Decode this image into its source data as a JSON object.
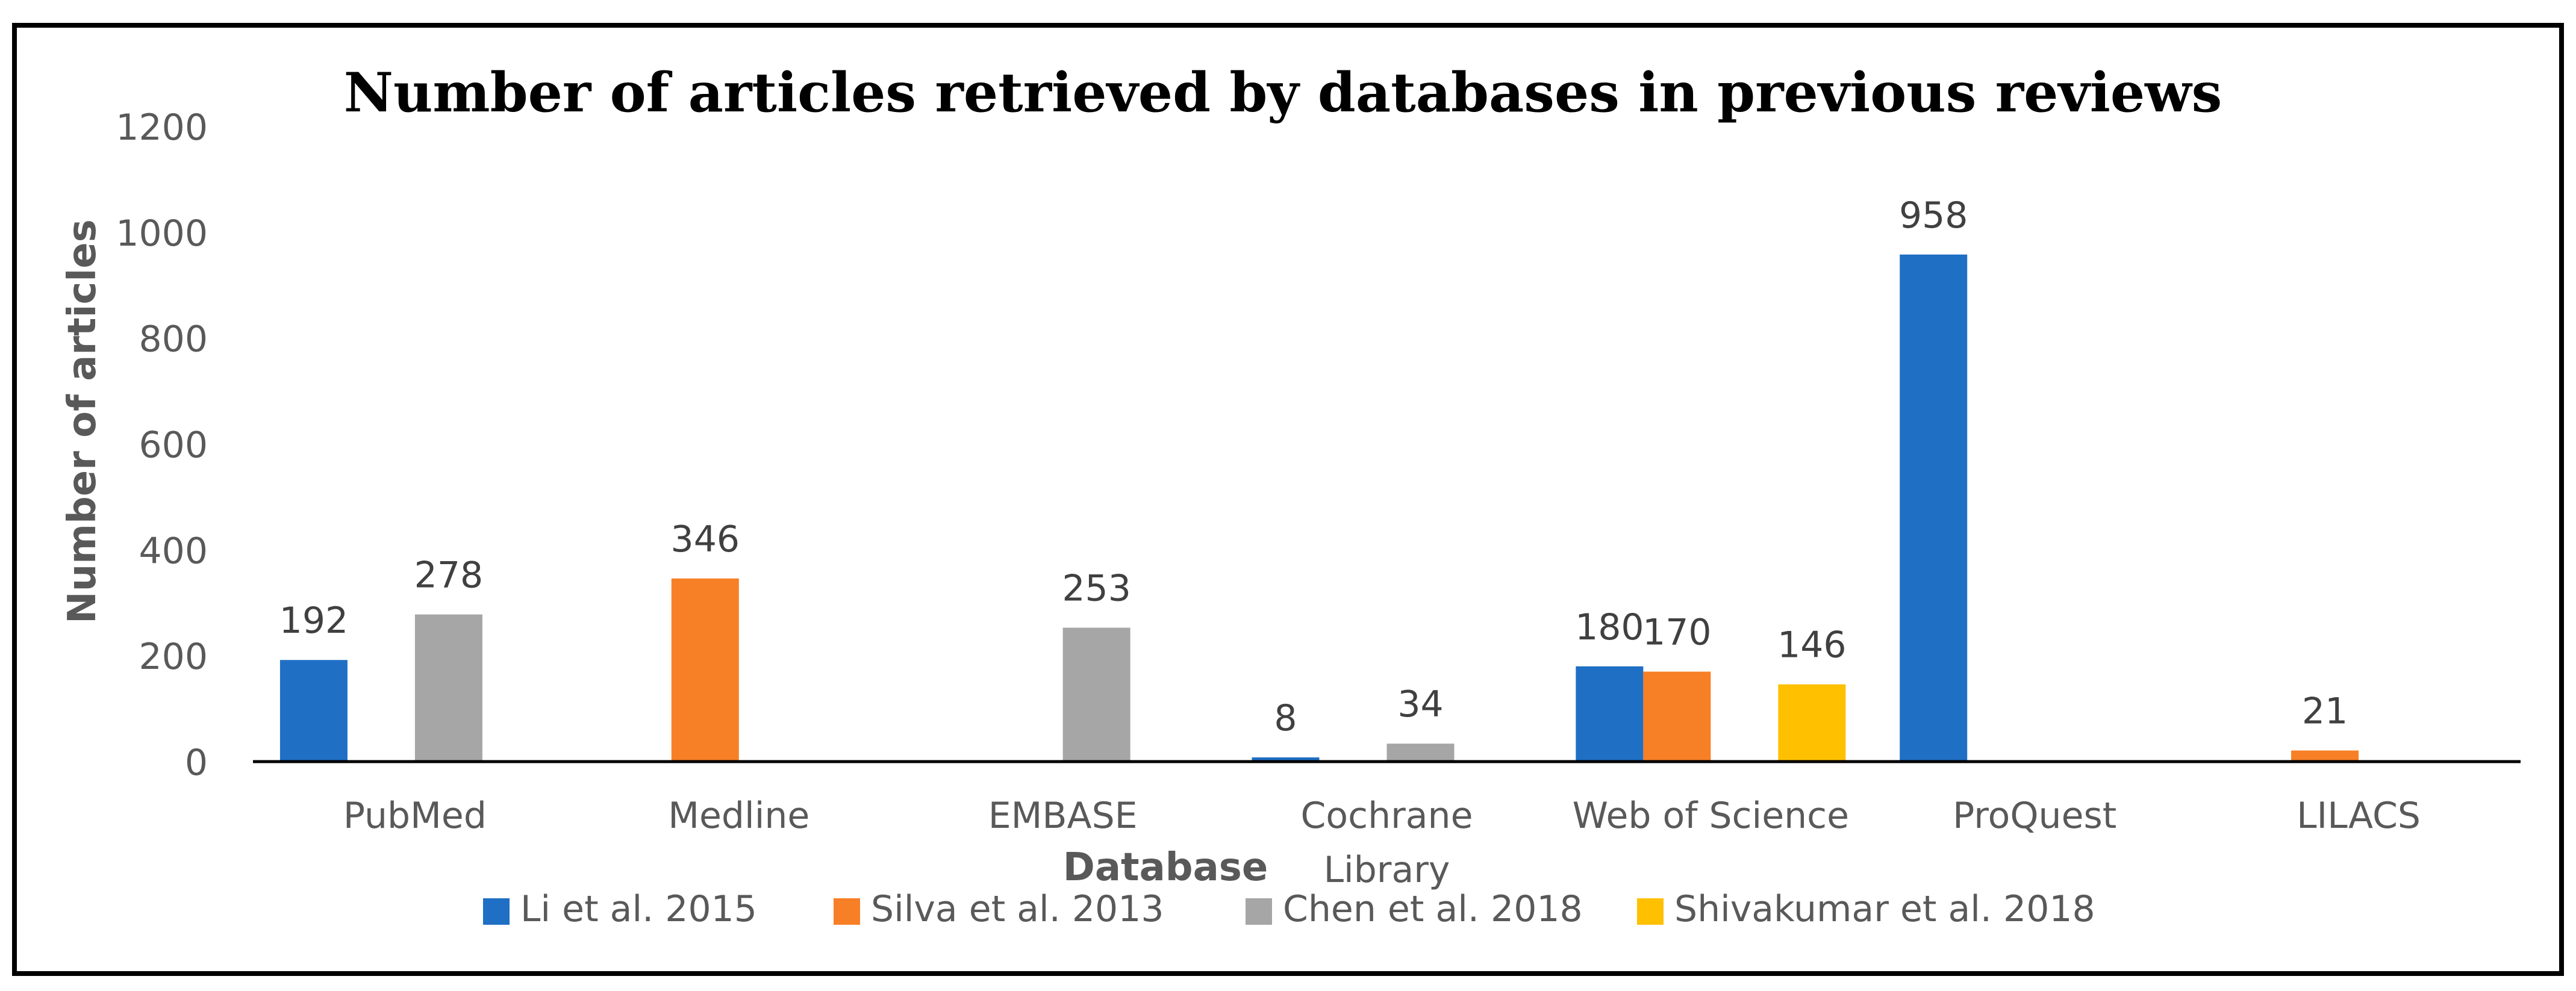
{
  "chart_data": {
    "type": "bar",
    "title": "Number of articles retrieved by databases in previous reviews",
    "xlabel": "Database",
    "ylabel": "Number of articles",
    "ylim": [
      0,
      1200
    ],
    "yticks": [
      0,
      200,
      400,
      600,
      800,
      1000,
      1200
    ],
    "grid": false,
    "legend_position": "bottom",
    "categories": [
      [
        "PubMed"
      ],
      [
        "Medline"
      ],
      [
        "EMBASE"
      ],
      [
        "Cochrane",
        "Library"
      ],
      [
        "Web of Science"
      ],
      [
        "ProQuest"
      ],
      [
        "LILACS"
      ]
    ],
    "series": [
      {
        "name": "Li et al. 2015",
        "color": "#1f6fc5",
        "values": [
          192,
          null,
          null,
          8,
          180,
          958,
          null
        ]
      },
      {
        "name": "Silva et al. 2013",
        "color": "#f77f26",
        "values": [
          null,
          346,
          null,
          null,
          170,
          null,
          21
        ]
      },
      {
        "name": "Chen et al. 2018",
        "color": "#a6a6a6",
        "values": [
          278,
          null,
          253,
          34,
          null,
          null,
          null
        ]
      },
      {
        "name": "Shivakumar et al. 2018",
        "color": "#ffc000",
        "values": [
          null,
          null,
          null,
          null,
          146,
          null,
          null
        ]
      }
    ]
  }
}
